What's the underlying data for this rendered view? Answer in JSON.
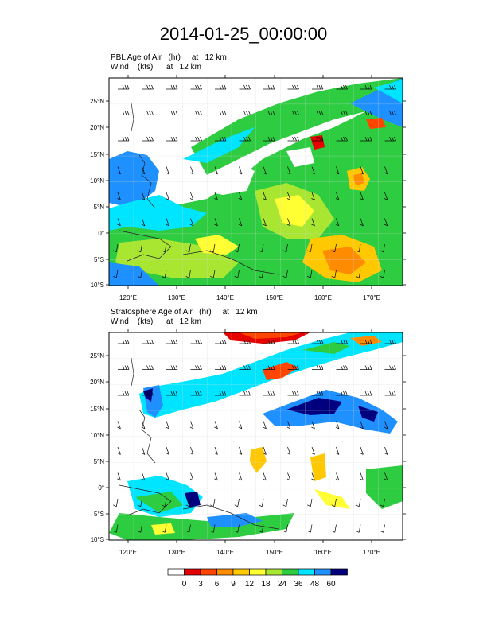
{
  "title": "2014-01-25_00:00:00",
  "panels": [
    {
      "line1": "PBL Age of Air   (hr)     at   12 km",
      "line2": "Wind    (kts)      at   12 km"
    },
    {
      "line1": "Stratosphere Age of Air   (hr)     at   12 km",
      "line2": "Wind    (kts)      at   12 km"
    }
  ],
  "lat_labels": [
    "25°N",
    "20°N",
    "15°N",
    "10°N",
    "5°N",
    "0°",
    "5°S",
    "10°S"
  ],
  "lon_labels": [
    "120°E",
    "130°E",
    "140°E",
    "150°E",
    "160°E",
    "170°E"
  ],
  "colorbar": {
    "labels": [
      "0",
      "3",
      "6",
      "9",
      "12",
      "18",
      "24",
      "36",
      "48",
      "60"
    ],
    "colors": [
      "#ffffff",
      "#e60000",
      "#ff4500",
      "#ff8c00",
      "#ffc800",
      "#ffff33",
      "#a8e632",
      "#2ecc40",
      "#00e5ff",
      "#1e90ff",
      "#00007f"
    ]
  }
}
